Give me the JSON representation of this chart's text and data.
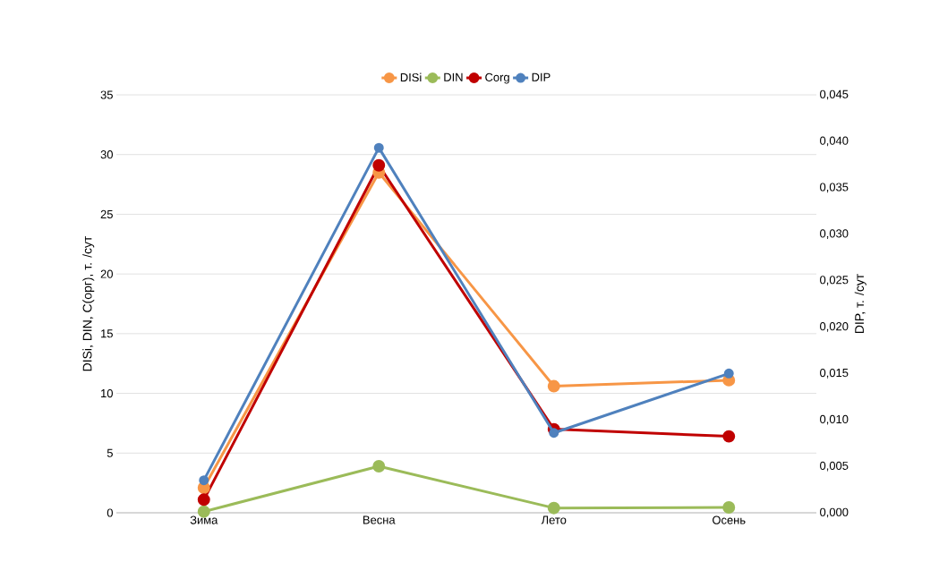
{
  "chart_data": {
    "type": "line",
    "categories": [
      "Зима",
      "Весна",
      "Лето",
      "Осень"
    ],
    "series": [
      {
        "name": "DISi",
        "color": "#f79646",
        "values": [
          2.1,
          28.5,
          10.6,
          11.1
        ]
      },
      {
        "name": "DIN",
        "color": "#9bbb59",
        "values": [
          0.1,
          3.9,
          0.4,
          0.45
        ]
      },
      {
        "name": "Corg",
        "color": "#c00000",
        "values": [
          1.1,
          29.1,
          7.0,
          6.4
        ]
      },
      {
        "name": "DIP",
        "color": "#4f81bd",
        "axis": "y2",
        "values": [
          0.0035,
          0.0393,
          0.0086,
          0.015
        ]
      }
    ],
    "ylabel": "DISi, DIN, C(орг), т. /сут",
    "y2label": "DIP, т. /сут",
    "ylim": [
      0,
      35
    ],
    "yticks": [
      0,
      5,
      10,
      15,
      20,
      25,
      30,
      35
    ],
    "y2lim": [
      0,
      0.045
    ],
    "y2ticks": [
      {
        "value": 0,
        "label": "0,000"
      },
      {
        "value": 0.005,
        "label": "0,005"
      },
      {
        "value": 0.01,
        "label": "0,010"
      },
      {
        "value": 0.015,
        "label": "0,015"
      },
      {
        "value": 0.02,
        "label": "0,020"
      },
      {
        "value": 0.025,
        "label": "0,025"
      },
      {
        "value": 0.03,
        "label": "0,030"
      },
      {
        "value": 0.035,
        "label": "0,035"
      },
      {
        "value": 0.04,
        "label": "0,040"
      },
      {
        "value": 0.045,
        "label": "0,045"
      }
    ],
    "grid": "y",
    "legend": "top",
    "marker": "circle",
    "line_style": "solid"
  }
}
